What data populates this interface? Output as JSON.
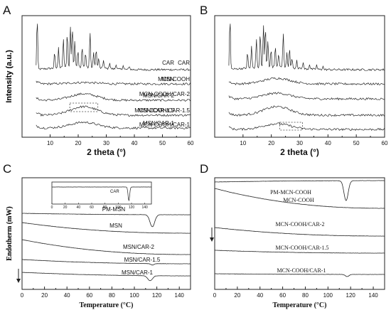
{
  "chart_data": [
    {
      "panel": "A",
      "type": "line",
      "title": "",
      "xlabel": "2 theta (°)",
      "ylabel": "Intensity (a.u.)",
      "xlim": [
        0,
        60
      ],
      "xticks": [
        10,
        20,
        30,
        40,
        50,
        60
      ],
      "grid": false,
      "legend": "none",
      "series": [
        {
          "name": "CAR",
          "kind": "crystalline"
        },
        {
          "name": "MSN",
          "kind": "amorphous"
        },
        {
          "name": "MSN/CAR-2",
          "kind": "amorphous"
        },
        {
          "name": "MSN/CAR-1.5",
          "kind": "amorphous"
        },
        {
          "name": "MSN/CAR-1",
          "kind": "amorphous"
        }
      ],
      "peaks_2theta": [
        5.4,
        11.6,
        13.0,
        14.7,
        16.1,
        17.2,
        17.9,
        18.8,
        19.9,
        21.4,
        22.6,
        24.2,
        25.5,
        26.4,
        27.3,
        29.0,
        31.2,
        33.5,
        36.0,
        38.2
      ],
      "annotation": "dashed box on MSN/CAR-1.5 around 2 theta 17–27"
    },
    {
      "panel": "B",
      "type": "line",
      "title": "",
      "xlabel": "2 theta (°)",
      "ylabel": "Intensity (a.u.)",
      "xlim": [
        0,
        60
      ],
      "xticks": [
        10,
        20,
        30,
        40,
        50,
        60
      ],
      "grid": false,
      "legend": "none",
      "series": [
        {
          "name": "CAR",
          "kind": "crystalline"
        },
        {
          "name": "MCN-COOH",
          "kind": "amorphous"
        },
        {
          "name": "MCN-COOH/CAR-2",
          "kind": "amorphous"
        },
        {
          "name": "MCN-COOH/CAR-1.5",
          "kind": "amorphous"
        },
        {
          "name": "MCN-COOH/CAR-1",
          "kind": "amorphous"
        }
      ],
      "annotation": "dashed box on MCN-COOH/CAR-1 around 2 theta 23–31"
    },
    {
      "panel": "C",
      "type": "line",
      "title": "",
      "xlabel": "Temperature (°C)",
      "ylabel": "Endotherm (mW)",
      "xlim": [
        0,
        150
      ],
      "xticks": [
        0,
        20,
        40,
        60,
        80,
        100,
        120,
        140
      ],
      "grid": false,
      "legend": "none",
      "series": [
        {
          "name": "PM-MSN",
          "endotherm_peak_C": 116
        },
        {
          "name": "MSN"
        },
        {
          "name": "MSN/CAR-2"
        },
        {
          "name": "MSN/CAR-1.5",
          "endotherm_peak_C": 116
        },
        {
          "name": "MSN/CAR-1",
          "endotherm_peak_C": 114
        }
      ],
      "inset": {
        "series": "CAR",
        "xlim": [
          0,
          150
        ],
        "xticks": [
          0,
          20,
          40,
          60,
          80,
          100,
          120,
          140
        ],
        "endotherm_peak_C": 116
      }
    },
    {
      "panel": "D",
      "type": "line",
      "title": "",
      "xlabel": "Temperature (°C)",
      "ylabel": "Endotherm (mW)",
      "xlim": [
        0,
        150
      ],
      "xticks": [
        0,
        20,
        40,
        60,
        80,
        100,
        120,
        140
      ],
      "grid": false,
      "legend": "none",
      "series": [
        {
          "name": "PM-MCN-COOH",
          "endotherm_peak_C": 116
        },
        {
          "name": "MCN-COOH"
        },
        {
          "name": "MCN-COOH/CAR-2"
        },
        {
          "name": "MCN-COOH/CAR-1.5"
        },
        {
          "name": "MCN-COOH/CAR-1",
          "endotherm_peak_C": 117
        }
      ]
    }
  ]
}
